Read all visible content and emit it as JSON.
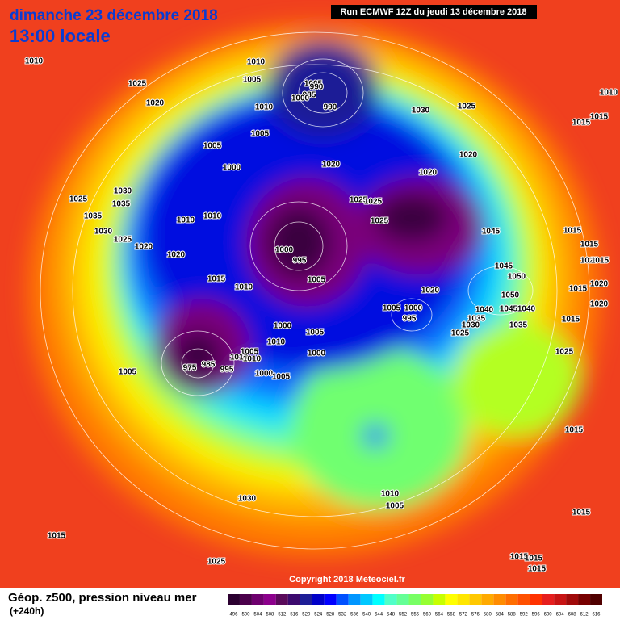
{
  "header": {
    "date": "dimanche 23 décembre 2018",
    "time": "13:00 locale",
    "run": "Run ECMWF 12Z du jeudi 13 décembre 2018"
  },
  "copyright": "Copyright 2018 Meteociel.fr",
  "legend": {
    "title": "Géop. z500, pression niveau mer",
    "subtitle": "(+240h)",
    "values": [
      496,
      500,
      504,
      508,
      512,
      516,
      520,
      524,
      528,
      532,
      536,
      540,
      544,
      548,
      552,
      556,
      560,
      564,
      568,
      572,
      576,
      580,
      584,
      588,
      592,
      596,
      600,
      604,
      608,
      612,
      616
    ],
    "colors": [
      "#2b0030",
      "#4b004b",
      "#6e006e",
      "#8c008c",
      "#5a0a5a",
      "#3c0a6e",
      "#1e1e96",
      "#0000c8",
      "#0000ff",
      "#0050ff",
      "#0096ff",
      "#00c8ff",
      "#00ffff",
      "#50ffc8",
      "#64ff96",
      "#78ff64",
      "#96ff32",
      "#c8ff00",
      "#ffff00",
      "#ffe600",
      "#ffc800",
      "#ffaa00",
      "#ff8c00",
      "#ff6e00",
      "#ff5000",
      "#ff3200",
      "#e61e1e",
      "#c81414",
      "#a00a0a",
      "#780000",
      "#500000"
    ]
  },
  "isobar_labels": [
    "1010",
    "1025",
    "1020",
    "1010",
    "1005",
    "1005",
    "990",
    "985",
    "1000",
    "990",
    "1010",
    "1005",
    "1005",
    "1000",
    "1020",
    "1030",
    "1025",
    "1020",
    "1020",
    "1025",
    "1030",
    "1035",
    "1035",
    "1030",
    "1025",
    "1020",
    "1020",
    "1010",
    "1010",
    "1025",
    "1025",
    "1025",
    "1000",
    "995",
    "1005",
    "1015",
    "1010",
    "1045",
    "1045",
    "1050",
    "1020",
    "1005",
    "1000",
    "995",
    "1050",
    "1045",
    "1040",
    "1040",
    "1035",
    "1030",
    "1025",
    "1035",
    "1000",
    "1005",
    "1010",
    "1000",
    "1005",
    "1010",
    "1010",
    "975",
    "985",
    "995",
    "1005",
    "1000",
    "1005",
    "1010",
    "1015",
    "1015",
    "1015",
    "1015",
    "1020",
    "1015",
    "1015",
    "1020",
    "1020",
    "1015",
    "1025",
    "1015",
    "1010",
    "1005",
    "1030",
    "1015",
    "1025",
    "1015",
    "1015",
    "1015",
    "1015"
  ]
}
